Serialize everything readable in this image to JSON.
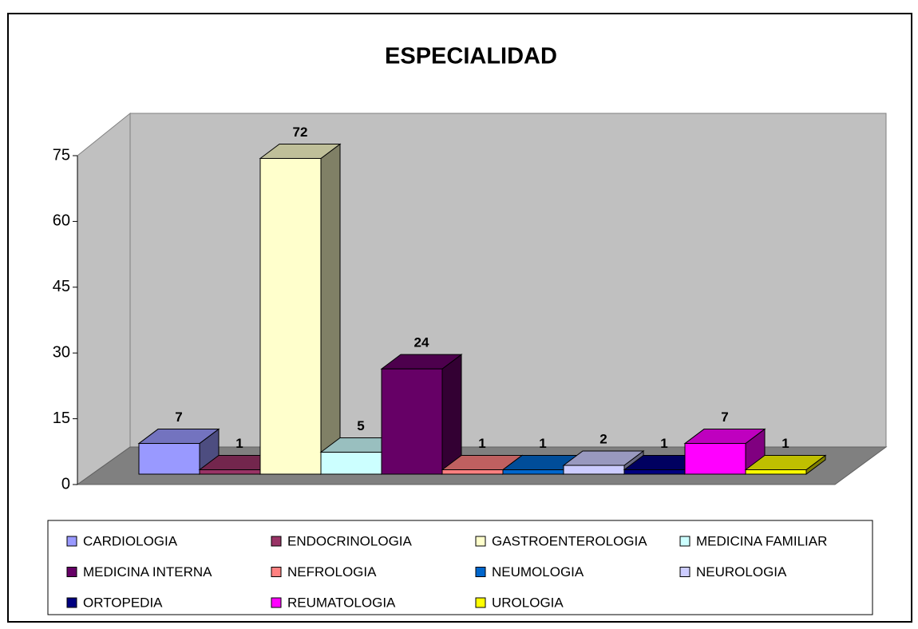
{
  "chart_data": {
    "type": "bar3d",
    "title": "ESPECIALIDAD",
    "ylim": [
      0,
      75
    ],
    "yticks": [
      0,
      15,
      30,
      45,
      60,
      75
    ],
    "grid": false,
    "legend": "bottom",
    "series": [
      {
        "name": "CARDIOLOGIA",
        "color": "#9999ff",
        "values": [
          7
        ]
      },
      {
        "name": "ENDOCRINOLOGIA",
        "color": "#993366",
        "values": [
          1
        ]
      },
      {
        "name": "GASTROENTEROLOGIA",
        "color": "#ffffcc",
        "values": [
          72
        ]
      },
      {
        "name": "MEDICINA FAMILIAR",
        "color": "#ccffff",
        "values": [
          5
        ]
      },
      {
        "name": "MEDICINA INTERNA",
        "color": "#660066",
        "values": [
          24
        ]
      },
      {
        "name": "NEFROLOGIA",
        "color": "#ff8080",
        "values": [
          1
        ]
      },
      {
        "name": "NEUMOLOGIA",
        "color": "#0066cc",
        "values": [
          1
        ]
      },
      {
        "name": "NEUROLOGIA",
        "color": "#ccccff",
        "values": [
          2
        ]
      },
      {
        "name": "ORTOPEDIA",
        "color": "#000080",
        "values": [
          1
        ]
      },
      {
        "name": "REUMATOLOGIA",
        "color": "#ff00ff",
        "values": [
          7
        ]
      },
      {
        "name": "UROLOGIA",
        "color": "#ffff00",
        "values": [
          1
        ]
      }
    ]
  }
}
